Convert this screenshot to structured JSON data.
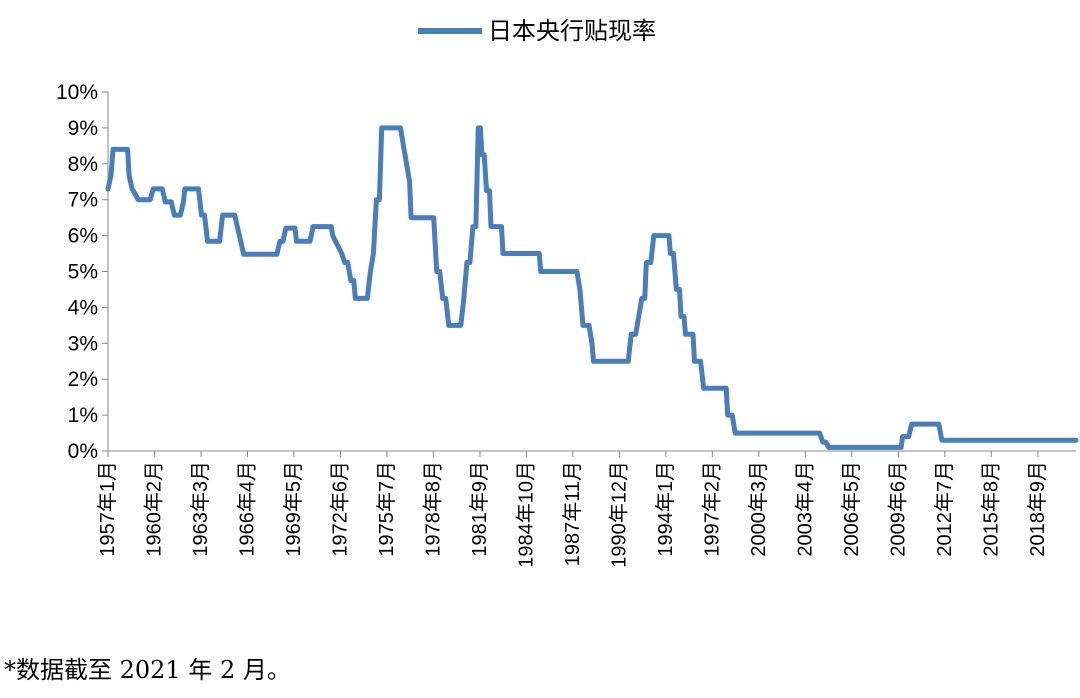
{
  "chart_data": {
    "type": "line",
    "title": "",
    "xlabel": "",
    "ylabel": "",
    "ylim": [
      0,
      10
    ],
    "yticks": [
      "0%",
      "1%",
      "2%",
      "3%",
      "4%",
      "5%",
      "6%",
      "7%",
      "8%",
      "9%",
      "10%"
    ],
    "xlim": [
      1957,
      2021.2
    ],
    "xticks": [
      {
        "x": 1957.0,
        "label": "1957年1月"
      },
      {
        "x": 1960.08,
        "label": "1960年2月"
      },
      {
        "x": 1963.17,
        "label": "1963年3月"
      },
      {
        "x": 1966.25,
        "label": "1966年4月"
      },
      {
        "x": 1969.33,
        "label": "1969年5月"
      },
      {
        "x": 1972.42,
        "label": "1972年6月"
      },
      {
        "x": 1975.5,
        "label": "1975年7月"
      },
      {
        "x": 1978.58,
        "label": "1978年8月"
      },
      {
        "x": 1981.67,
        "label": "1981年9月"
      },
      {
        "x": 1984.75,
        "label": "1984年10月"
      },
      {
        "x": 1987.83,
        "label": "1987年11月"
      },
      {
        "x": 1990.92,
        "label": "1990年12月"
      },
      {
        "x": 1994.0,
        "label": "1994年1月"
      },
      {
        "x": 1997.08,
        "label": "1997年2月"
      },
      {
        "x": 2000.17,
        "label": "2000年3月"
      },
      {
        "x": 2003.25,
        "label": "2003年4月"
      },
      {
        "x": 2006.33,
        "label": "2006年5月"
      },
      {
        "x": 2009.42,
        "label": "2009年6月"
      },
      {
        "x": 2012.5,
        "label": "2012年7月"
      },
      {
        "x": 2015.58,
        "label": "2015年8月"
      },
      {
        "x": 2018.67,
        "label": "2018年9月"
      }
    ],
    "grid": false,
    "legend_position": "top-center",
    "series": [
      {
        "name": "日本央行贴现率",
        "color": "#4a7ebb",
        "points": [
          [
            1957.0,
            7.3
          ],
          [
            1957.2,
            7.67
          ],
          [
            1957.33,
            8.4
          ],
          [
            1958.3,
            8.4
          ],
          [
            1958.4,
            7.67
          ],
          [
            1958.6,
            7.3
          ],
          [
            1959.0,
            7.0
          ],
          [
            1959.8,
            7.0
          ],
          [
            1960.0,
            7.3
          ],
          [
            1960.6,
            7.3
          ],
          [
            1960.8,
            6.94
          ],
          [
            1961.2,
            6.94
          ],
          [
            1961.4,
            6.57
          ],
          [
            1961.8,
            6.57
          ],
          [
            1962.0,
            6.94
          ],
          [
            1962.1,
            7.3
          ],
          [
            1963.0,
            7.3
          ],
          [
            1963.2,
            6.57
          ],
          [
            1963.4,
            6.57
          ],
          [
            1963.6,
            5.84
          ],
          [
            1964.4,
            5.84
          ],
          [
            1964.6,
            6.57
          ],
          [
            1965.4,
            6.57
          ],
          [
            1965.6,
            6.21
          ],
          [
            1965.8,
            5.84
          ],
          [
            1966.0,
            5.48
          ],
          [
            1968.2,
            5.48
          ],
          [
            1968.4,
            5.84
          ],
          [
            1968.6,
            5.84
          ],
          [
            1968.8,
            6.21
          ],
          [
            1969.4,
            6.21
          ],
          [
            1969.5,
            5.84
          ],
          [
            1970.4,
            5.84
          ],
          [
            1970.6,
            6.25
          ],
          [
            1971.8,
            6.25
          ],
          [
            1971.9,
            6.0
          ],
          [
            1972.2,
            5.75
          ],
          [
            1972.5,
            5.5
          ],
          [
            1972.7,
            5.25
          ],
          [
            1972.9,
            5.25
          ],
          [
            1973.1,
            4.75
          ],
          [
            1973.3,
            4.75
          ],
          [
            1973.4,
            4.25
          ],
          [
            1974.2,
            4.25
          ],
          [
            1974.4,
            5.0
          ],
          [
            1974.6,
            5.5
          ],
          [
            1974.8,
            7.0
          ],
          [
            1975.0,
            7.0
          ],
          [
            1975.15,
            9.0
          ],
          [
            1976.4,
            9.0
          ],
          [
            1976.6,
            8.5
          ],
          [
            1976.8,
            8.0
          ],
          [
            1977.0,
            7.5
          ],
          [
            1977.1,
            6.5
          ],
          [
            1978.6,
            6.5
          ],
          [
            1978.8,
            5.0
          ],
          [
            1979.0,
            5.0
          ],
          [
            1979.2,
            4.25
          ],
          [
            1979.4,
            4.25
          ],
          [
            1979.6,
            3.5
          ],
          [
            1980.4,
            3.5
          ],
          [
            1980.6,
            4.25
          ],
          [
            1980.8,
            5.25
          ],
          [
            1981.0,
            5.25
          ],
          [
            1981.2,
            6.25
          ],
          [
            1981.4,
            6.25
          ],
          [
            1981.55,
            9.0
          ],
          [
            1981.7,
            9.0
          ],
          [
            1981.8,
            8.25
          ],
          [
            1981.95,
            8.25
          ],
          [
            1982.1,
            7.25
          ],
          [
            1982.3,
            7.25
          ],
          [
            1982.4,
            6.25
          ],
          [
            1983.1,
            6.25
          ],
          [
            1983.2,
            5.5
          ],
          [
            1985.6,
            5.5
          ],
          [
            1985.7,
            5.0
          ],
          [
            1988.1,
            5.0
          ],
          [
            1988.3,
            4.5
          ],
          [
            1988.5,
            3.5
          ],
          [
            1988.9,
            3.5
          ],
          [
            1989.1,
            3.0
          ],
          [
            1989.2,
            2.5
          ],
          [
            1991.5,
            2.5
          ],
          [
            1991.7,
            3.25
          ],
          [
            1992.0,
            3.25
          ],
          [
            1992.2,
            3.75
          ],
          [
            1992.4,
            4.25
          ],
          [
            1992.6,
            4.25
          ],
          [
            1992.7,
            5.25
          ],
          [
            1993.0,
            5.25
          ],
          [
            1993.2,
            6.0
          ],
          [
            1994.2,
            6.0
          ],
          [
            1994.3,
            5.5
          ],
          [
            1994.5,
            5.5
          ],
          [
            1994.7,
            4.5
          ],
          [
            1994.9,
            4.5
          ],
          [
            1995.0,
            3.75
          ],
          [
            1995.2,
            3.75
          ],
          [
            1995.3,
            3.25
          ],
          [
            1995.8,
            3.25
          ],
          [
            1995.9,
            2.5
          ],
          [
            1996.3,
            2.5
          ],
          [
            1996.5,
            1.75
          ],
          [
            1998.0,
            1.75
          ],
          [
            1998.1,
            1.0
          ],
          [
            1998.4,
            1.0
          ],
          [
            1998.6,
            0.5
          ],
          [
            2004.2,
            0.5
          ],
          [
            2004.4,
            0.25
          ],
          [
            2004.6,
            0.25
          ],
          [
            2004.8,
            0.1
          ],
          [
            2009.6,
            0.1
          ],
          [
            2009.7,
            0.4
          ],
          [
            2010.1,
            0.4
          ],
          [
            2010.3,
            0.75
          ],
          [
            2012.1,
            0.75
          ],
          [
            2012.3,
            0.3
          ],
          [
            2021.2,
            0.3
          ]
        ]
      }
    ]
  },
  "footnote": "*数据截至 2021 年 2 月。"
}
